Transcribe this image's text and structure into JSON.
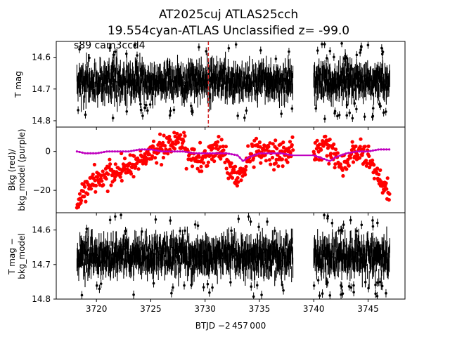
{
  "title_line1": "AT2025cuj  ATLAS25cch",
  "title_line2": "19.554cyan-ATLAS Unclassified z= -99.0",
  "annotation": "s89 cam3ccd4",
  "xlabel": "BTJD −2 457 000",
  "colors": {
    "flux": "#000000",
    "bkg": "#ff0000",
    "bkg_model": "#bf00bf",
    "event": "#d62728"
  },
  "chart_data": [
    {
      "type": "scatter",
      "panel": "top",
      "ylabel": "T mag",
      "ylim": [
        14.82,
        14.55
      ],
      "inverted_y": true,
      "yticks": [
        14.6,
        14.7,
        14.8
      ],
      "xlim": [
        3716.3,
        3748.4
      ],
      "xticks": [
        3720,
        3725,
        3730,
        3735,
        3740,
        3745
      ],
      "segments": [
        [
          3718.2,
          3738.1
        ],
        [
          3740.0,
          3747.0
        ]
      ],
      "median": 14.675,
      "scatter_range": [
        14.62,
        14.75
      ],
      "event_line_x": 3730.3,
      "series": [
        {
          "values": "dense photometry with error bars"
        }
      ]
    },
    {
      "type": "scatter",
      "panel": "middle",
      "ylabel": "Bkg (red)/\nbkg_model (purple)",
      "ylim": [
        -31.5,
        12.5
      ],
      "yticks": [
        0,
        -20
      ],
      "xlim": [
        3716.3,
        3748.4
      ],
      "bkg_points": [
        [
          3718.2,
          -27
        ],
        [
          3718.8,
          -20
        ],
        [
          3719.5,
          -15
        ],
        [
          3720.5,
          -13
        ],
        [
          3721.5,
          -11
        ],
        [
          3722.5,
          -9
        ],
        [
          3723.5,
          -6
        ],
        [
          3724.5,
          -3
        ],
        [
          3725.5,
          1
        ],
        [
          3726.5,
          3
        ],
        [
          3727.5,
          4
        ],
        [
          3728.0,
          3
        ],
        [
          3728.5,
          -2
        ],
        [
          3729.0,
          -4
        ],
        [
          3729.5,
          -5
        ],
        [
          3730.0,
          -3
        ],
        [
          3730.5,
          0
        ],
        [
          3731.0,
          1
        ],
        [
          3731.5,
          0
        ],
        [
          3732.0,
          -4
        ],
        [
          3732.5,
          -11
        ],
        [
          3733.0,
          -13
        ],
        [
          3733.5,
          -8
        ],
        [
          3734.0,
          -3
        ],
        [
          3734.5,
          0
        ],
        [
          3735.0,
          1
        ],
        [
          3736.0,
          0
        ],
        [
          3737.0,
          -1
        ],
        [
          3738.0,
          0
        ],
        [
          3740.0,
          0
        ],
        [
          3740.5,
          1
        ],
        [
          3741.0,
          3
        ],
        [
          3741.5,
          2
        ],
        [
          3742.0,
          -2
        ],
        [
          3742.5,
          -8
        ],
        [
          3743.0,
          -7
        ],
        [
          3743.5,
          -2
        ],
        [
          3744.0,
          0
        ],
        [
          3744.5,
          -2
        ],
        [
          3745.0,
          -4
        ],
        [
          3745.5,
          -8
        ],
        [
          3746.0,
          -13
        ],
        [
          3746.5,
          -17
        ],
        [
          3747.0,
          -24
        ]
      ],
      "bkg_model_points": [
        [
          3718.2,
          0
        ],
        [
          3719.0,
          -1
        ],
        [
          3720.0,
          -1
        ],
        [
          3721.0,
          0
        ],
        [
          3722.0,
          0
        ],
        [
          3723.0,
          0
        ],
        [
          3724.0,
          1
        ],
        [
          3725.0,
          1
        ],
        [
          3726.0,
          0
        ],
        [
          3727.0,
          0
        ],
        [
          3728.0,
          0
        ],
        [
          3729.0,
          -1
        ],
        [
          3730.0,
          -1
        ],
        [
          3731.0,
          -1
        ],
        [
          3732.0,
          -1
        ],
        [
          3733.0,
          -2
        ],
        [
          3733.5,
          -5
        ],
        [
          3734.0,
          -3
        ],
        [
          3735.0,
          -1
        ],
        [
          3736.0,
          -1
        ],
        [
          3737.0,
          -1
        ],
        [
          3738.1,
          -2
        ],
        [
          3740.0,
          -2
        ],
        [
          3740.5,
          -3
        ],
        [
          3741.0,
          -4
        ],
        [
          3741.5,
          -5
        ],
        [
          3742.0,
          -3
        ],
        [
          3743.0,
          -1
        ],
        [
          3744.0,
          0
        ],
        [
          3745.0,
          0
        ],
        [
          3746.0,
          1
        ],
        [
          3747.0,
          1
        ]
      ]
    },
    {
      "type": "scatter",
      "panel": "bottom",
      "ylabel": "T mag −\nbkg_model",
      "ylim": [
        14.8,
        14.55
      ],
      "inverted_y": true,
      "yticks": [
        14.6,
        14.7,
        14.8
      ],
      "xlim": [
        3716.3,
        3748.4
      ],
      "xticks": [
        3720,
        3725,
        3730,
        3735,
        3740,
        3745
      ],
      "segments": [
        [
          3718.2,
          3738.1
        ],
        [
          3740.0,
          3747.0
        ]
      ],
      "median": 14.675,
      "scatter_range": [
        14.62,
        14.74
      ],
      "series": [
        {
          "values": "dense photometry with error bars"
        }
      ]
    }
  ]
}
